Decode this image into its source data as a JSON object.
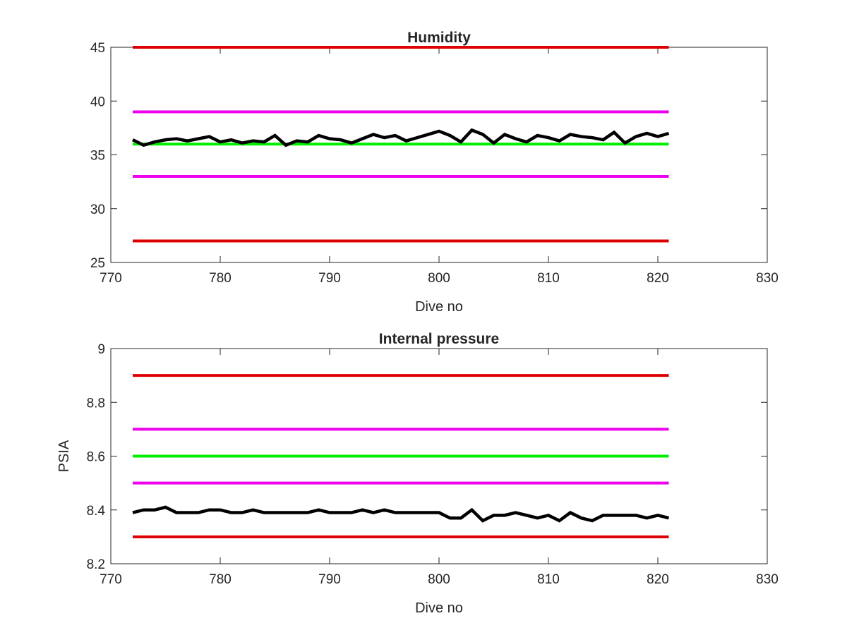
{
  "chart_data": [
    {
      "type": "line",
      "title": "Humidity",
      "xlabel": "Dive no",
      "ylabel": "",
      "xlim": [
        770,
        830
      ],
      "ylim": [
        25,
        45
      ],
      "x_ticks": [
        770,
        780,
        790,
        800,
        810,
        820,
        830
      ],
      "y_ticks": [
        25,
        30,
        35,
        40,
        45
      ],
      "grid": false,
      "series": [
        {
          "role": "upper-limit",
          "color": "#dd0000",
          "x": [
            772,
            821
          ],
          "y": [
            45,
            45
          ]
        },
        {
          "role": "upper-warning",
          "color": "#ee00ee",
          "x": [
            772,
            821
          ],
          "y": [
            39,
            39
          ]
        },
        {
          "role": "nominal",
          "color": "#00ee00",
          "x": [
            772,
            821
          ],
          "y": [
            36,
            36
          ]
        },
        {
          "role": "lower-warning",
          "color": "#ee00ee",
          "x": [
            772,
            821
          ],
          "y": [
            33,
            33
          ]
        },
        {
          "role": "lower-limit",
          "color": "#dd0000",
          "x": [
            772,
            821
          ],
          "y": [
            27,
            27
          ]
        },
        {
          "role": "measured",
          "color": "#000000",
          "x": [
            772,
            773,
            774,
            775,
            776,
            777,
            778,
            779,
            780,
            781,
            782,
            783,
            784,
            785,
            786,
            787,
            788,
            789,
            790,
            791,
            792,
            793,
            794,
            795,
            796,
            797,
            798,
            799,
            800,
            801,
            802,
            803,
            804,
            805,
            806,
            807,
            808,
            809,
            810,
            811,
            812,
            813,
            814,
            815,
            816,
            817,
            818,
            819,
            820,
            821
          ],
          "y": [
            36.4,
            35.9,
            36.2,
            36.4,
            36.5,
            36.3,
            36.5,
            36.7,
            36.2,
            36.4,
            36.1,
            36.3,
            36.2,
            36.8,
            35.9,
            36.3,
            36.2,
            36.8,
            36.5,
            36.4,
            36.1,
            36.5,
            36.9,
            36.6,
            36.8,
            36.3,
            36.6,
            36.9,
            37.2,
            36.8,
            36.2,
            37.3,
            36.9,
            36.1,
            36.9,
            36.5,
            36.2,
            36.8,
            36.6,
            36.3,
            36.9,
            36.7,
            36.6,
            36.4,
            37.1,
            36.1,
            36.7,
            37.0,
            36.7,
            37.0
          ]
        }
      ]
    },
    {
      "type": "line",
      "title": "Internal pressure",
      "xlabel": "Dive no",
      "ylabel": "PSIA",
      "xlim": [
        770,
        830
      ],
      "ylim": [
        8.2,
        9
      ],
      "x_ticks": [
        770,
        780,
        790,
        800,
        810,
        820,
        830
      ],
      "y_ticks": [
        8.2,
        8.4,
        8.6,
        8.8,
        9
      ],
      "grid": false,
      "series": [
        {
          "role": "upper-limit",
          "color": "#dd0000",
          "x": [
            772,
            821
          ],
          "y": [
            8.9,
            8.9
          ]
        },
        {
          "role": "upper-warning",
          "color": "#ee00ee",
          "x": [
            772,
            821
          ],
          "y": [
            8.7,
            8.7
          ]
        },
        {
          "role": "nominal",
          "color": "#00ee00",
          "x": [
            772,
            821
          ],
          "y": [
            8.6,
            8.6
          ]
        },
        {
          "role": "lower-warning",
          "color": "#ee00ee",
          "x": [
            772,
            821
          ],
          "y": [
            8.5,
            8.5
          ]
        },
        {
          "role": "lower-limit",
          "color": "#dd0000",
          "x": [
            772,
            821
          ],
          "y": [
            8.3,
            8.3
          ]
        },
        {
          "role": "measured",
          "color": "#000000",
          "x": [
            772,
            773,
            774,
            775,
            776,
            777,
            778,
            779,
            780,
            781,
            782,
            783,
            784,
            785,
            786,
            787,
            788,
            789,
            790,
            791,
            792,
            793,
            794,
            795,
            796,
            797,
            798,
            799,
            800,
            801,
            802,
            803,
            804,
            805,
            806,
            807,
            808,
            809,
            810,
            811,
            812,
            813,
            814,
            815,
            816,
            817,
            818,
            819,
            820,
            821
          ],
          "y": [
            8.39,
            8.4,
            8.4,
            8.41,
            8.39,
            8.39,
            8.39,
            8.4,
            8.4,
            8.39,
            8.39,
            8.4,
            8.39,
            8.39,
            8.39,
            8.39,
            8.39,
            8.4,
            8.39,
            8.39,
            8.39,
            8.4,
            8.39,
            8.4,
            8.39,
            8.39,
            8.39,
            8.39,
            8.39,
            8.37,
            8.37,
            8.4,
            8.36,
            8.38,
            8.38,
            8.39,
            8.38,
            8.37,
            8.38,
            8.36,
            8.39,
            8.37,
            8.36,
            8.38,
            8.38,
            8.38,
            8.38,
            8.37,
            8.38,
            8.37
          ]
        }
      ]
    }
  ]
}
